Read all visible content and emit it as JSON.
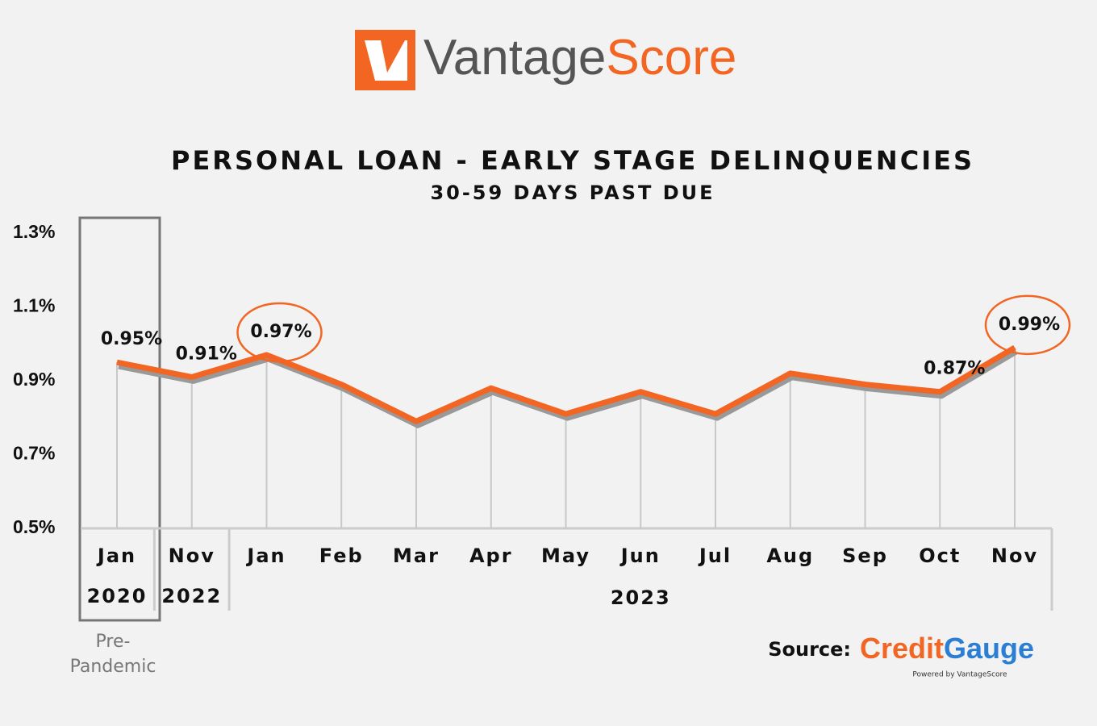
{
  "logo": [
    "Vantage",
    "Score"
  ],
  "chart_data": {
    "type": "line",
    "title": "PERSONAL LOAN - EARLY STAGE DELINQUENCIES",
    "subtitle": "30-59 DAYS PAST DUE",
    "groups": [
      {
        "label": "2020",
        "categories": [
          "Jan"
        ]
      },
      {
        "label": "2022",
        "categories": [
          "Nov"
        ]
      },
      {
        "label": "2023",
        "categories": [
          "Jan",
          "Feb",
          "Mar",
          "Apr",
          "May",
          "Jun",
          "Jul",
          "Aug",
          "Sep",
          "Oct",
          "Nov"
        ]
      }
    ],
    "values": [
      0.95,
      0.91,
      0.97,
      0.89,
      0.79,
      0.88,
      0.81,
      0.87,
      0.81,
      0.92,
      0.89,
      0.87,
      0.99
    ],
    "value_labels": [
      "0.95%",
      "0.91%",
      "0.97%",
      null,
      null,
      null,
      null,
      null,
      null,
      null,
      null,
      "0.87%",
      "0.99%"
    ],
    "circled_labels": [
      2,
      12
    ],
    "color": "#f26522",
    "ylim": [
      0.5,
      1.3
    ],
    "yticks": [
      {
        "value": 0.5,
        "label": "0.5%"
      },
      {
        "value": 0.7,
        "label": "0.7%"
      },
      {
        "value": 0.9,
        "label": "0.9%"
      },
      {
        "value": 1.1,
        "label": "1.1%"
      },
      {
        "value": 1.3,
        "label": "1.3%"
      }
    ],
    "annotation_lines": [
      "Pre-",
      "Pandemic"
    ]
  },
  "source_label": "Source:",
  "source": [
    "Credit",
    "Gauge"
  ],
  "source_note": "Powered by VantageScore"
}
